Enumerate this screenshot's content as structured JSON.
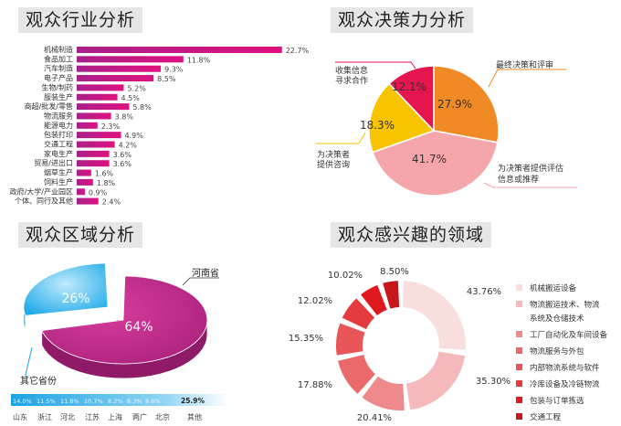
{
  "titles": {
    "industry": "观众行业分析",
    "decision": "观众决策力分析",
    "region": "观众区域分析",
    "interest": "观众感兴趣的领域"
  },
  "chart_data": [
    {
      "type": "bar",
      "orientation": "horizontal",
      "title": "观众行业分析",
      "categories": [
        "机械制造",
        "食品加工",
        "汽车制造",
        "电子产品",
        "生物/制药",
        "服装生产",
        "商超/批发/零售",
        "物流服务",
        "能源电力",
        "包装打印",
        "交通工程",
        "家电生产",
        "贸易/进出口",
        "烟草生产",
        "饲料生产",
        "政府/大学/产业园区",
        "个体、同行及其他"
      ],
      "values": [
        22.7,
        11.8,
        9.3,
        8.5,
        5.2,
        4.5,
        5.8,
        3.8,
        2.3,
        4.9,
        4.2,
        3.6,
        3.6,
        1.6,
        1.8,
        0.9,
        2.4
      ],
      "labels": [
        "22.7%",
        "11.8%",
        "9.3%",
        "8.5%",
        "5.2%",
        "4.5%",
        "5.8%",
        "3.8%",
        "2.3%",
        "4.9%",
        "4.2%",
        "3.6%",
        "3.6%",
        "1.6%",
        "1.8%",
        "0.9%",
        "2.4%"
      ],
      "color": "#c2188f"
    },
    {
      "type": "pie",
      "title": "观众决策力分析",
      "slices": [
        {
          "name": "最终决策和评审",
          "value": 27.9,
          "label": "27.9%",
          "color": "#f08a24"
        },
        {
          "name": "为决策者提供评估信息或推荐",
          "value": 41.7,
          "label": "41.7%",
          "color": "#f5a6ab"
        },
        {
          "name": "为决策者提供咨询",
          "value": 18.3,
          "label": "18.3%",
          "color": "#f8c300"
        },
        {
          "name": "收集信息寻求合作",
          "value": 12.1,
          "label": "12.1%",
          "color": "#e5154f"
        }
      ]
    },
    {
      "type": "pie",
      "style": "3d-exploded",
      "title": "观众区域分析",
      "slices": [
        {
          "name": "河南省",
          "value": 64,
          "label": "64%",
          "color": "#c0238a"
        },
        {
          "name": "其它省份",
          "value": 26,
          "label": "26%",
          "color": "#26b0ea"
        }
      ],
      "breakdown": {
        "type": "stacked-bar",
        "categories": [
          "山东",
          "浙江",
          "河北",
          "江苏",
          "上海",
          "两广",
          "北京",
          "其他"
        ],
        "values": [
          14.0,
          11.5,
          11.8,
          10.7,
          8.2,
          8.3,
          8.6,
          25.9
        ],
        "labels": [
          "14.0%",
          "11.5%",
          "11.8%",
          "10.7%",
          "8.2%",
          "8.3%",
          "8.6%",
          "25.9%"
        ],
        "color": "#2aa8e6"
      }
    },
    {
      "type": "donut",
      "title": "观众感兴趣的领域",
      "legend_position": "right",
      "categories": [
        "机械搬运设备",
        "物流搬运技术、物流系统及仓储技术",
        "工厂自动化及车间设备",
        "物流服务与外包",
        "内部物流系统与软件",
        "冷库设备及冷链物流",
        "包装与订单拣选",
        "交通工程"
      ],
      "legend_lines": [
        [
          "机械搬运设备"
        ],
        [
          "物流搬运技术、物流",
          "系统及仓储技术"
        ],
        [
          "工厂自动化及车间设备"
        ],
        [
          "物流服务与外包"
        ],
        [
          "内部物流系统与软件"
        ],
        [
          "冷库设备及冷链物流"
        ],
        [
          "包装与订单拣选"
        ],
        [
          "交通工程"
        ]
      ],
      "values": [
        43.76,
        35.3,
        20.41,
        17.88,
        15.35,
        12.02,
        10.02,
        8.5
      ],
      "labels": [
        "43.76%",
        "35.30%",
        "20.41%",
        "17.88%",
        "15.35%",
        "12.02%",
        "10.02%",
        "8.50%"
      ],
      "colors": [
        "#f9dede",
        "#f6b9bb",
        "#ee8a8c",
        "#ea6a6c",
        "#e9565a",
        "#e43b3f",
        "#e0191f",
        "#c8161c"
      ]
    }
  ]
}
